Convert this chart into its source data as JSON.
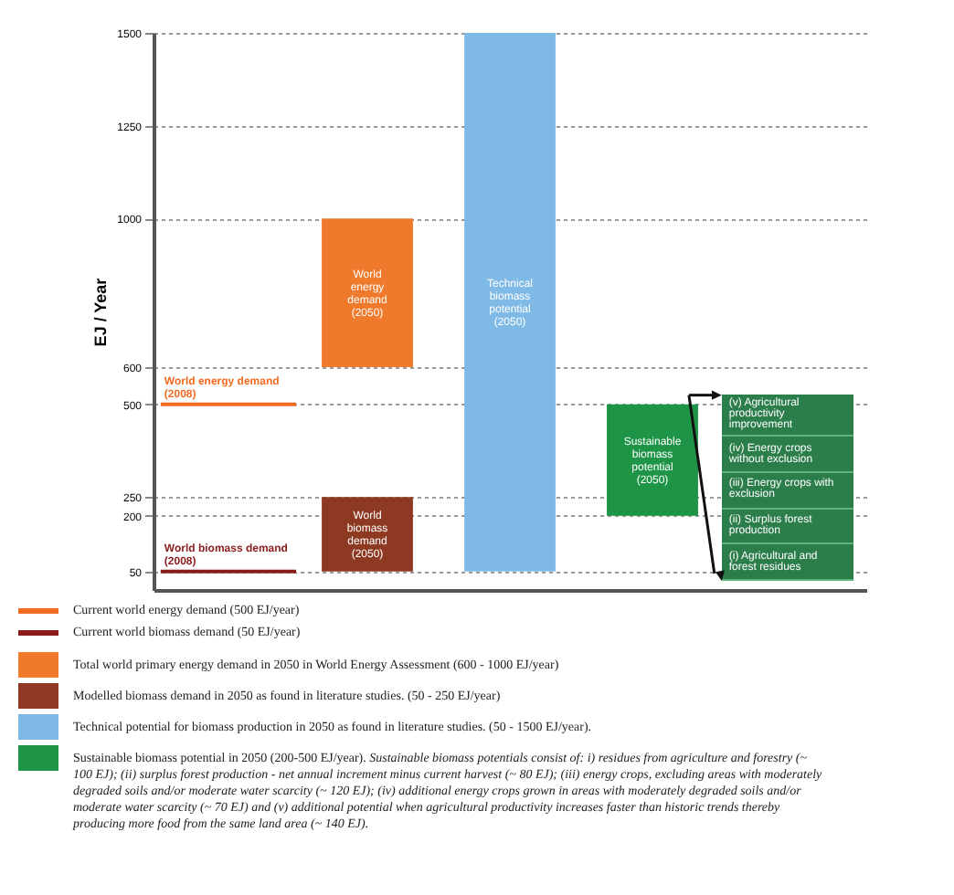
{
  "chart_data": {
    "type": "bar",
    "ylabel": "EJ / Year",
    "categories": [
      null,
      null,
      null,
      null,
      null
    ],
    "ylim": [
      0,
      1500
    ],
    "yticks": [
      50,
      200,
      250,
      500,
      600,
      1000,
      1250,
      1500
    ],
    "grid": "y",
    "legend": "bottom",
    "series": [
      {
        "name": "World energy demand (2050)",
        "color": "#f07a2c",
        "base": [
          null,
          600,
          null,
          null,
          null
        ],
        "values": [
          null,
          400,
          null,
          null,
          null
        ]
      },
      {
        "name": "World biomass demand (2050)",
        "color": "#8e3a22",
        "base": [
          null,
          50,
          null,
          null,
          null
        ],
        "values": [
          null,
          200,
          null,
          null,
          null
        ]
      },
      {
        "name": "Technical biomass potential (2050)",
        "color": "#7fb9e6",
        "base": [
          null,
          null,
          50,
          null,
          null
        ],
        "values": [
          null,
          null,
          1450,
          null,
          null
        ]
      },
      {
        "name": "Sustainable biomass potential (2050)",
        "color": "#1e9447",
        "base": [
          null,
          null,
          null,
          200,
          null
        ],
        "values": [
          null,
          null,
          null,
          300,
          null
        ]
      }
    ],
    "ref_lines": [
      {
        "axis": "y",
        "value": 500,
        "label": "World energy demand (2008)",
        "color": "#f26b21"
      },
      {
        "axis": "y",
        "value": 50,
        "label": "World biomass demand (2008)",
        "color": "#8b1c1c"
      }
    ],
    "annotations": [
      "Current world energy demand (500 EJ/year)",
      "Current world biomass demand (50 EJ/year)",
      "Total world primary energy demand in 2050 in World Energy Assessment (600 - 1000 EJ/year)",
      "Modelled biomass demand in 2050 as found in literature studies. (50 - 250 EJ/year)",
      "Technical potential for biomass production in 2050 as found in literature studies. (50 - 1500 EJ/year).",
      "Sustainable biomass potential in 2050 (200-500 EJ/year).",
      "Sustainable biomass potentials consist of: i) residues from agriculture and forestry (~ 100 EJ); (ii) surplus forest production - net annual increment minus current harvest (~ 80 EJ); (iii) energy crops, excluding areas with moderately degraded soils and/or moderate water scarcity (~ 120 EJ); (iv) additional energy crops grown in areas with moderately degraded soils and/or moderate water scarcity (~ 70 EJ) and (v) additional potential when agricultural productivity increases faster than historic trends thereby producing more food from the same land area (~ 140 EJ).",
      "(v) Agricultural productivity improvement",
      "(iv) Energy crops without exclusion",
      "(iii) Energy crops with exclusion",
      "(ii) Surplus forest production",
      "(i) Agricultural and forest residues"
    ]
  }
}
